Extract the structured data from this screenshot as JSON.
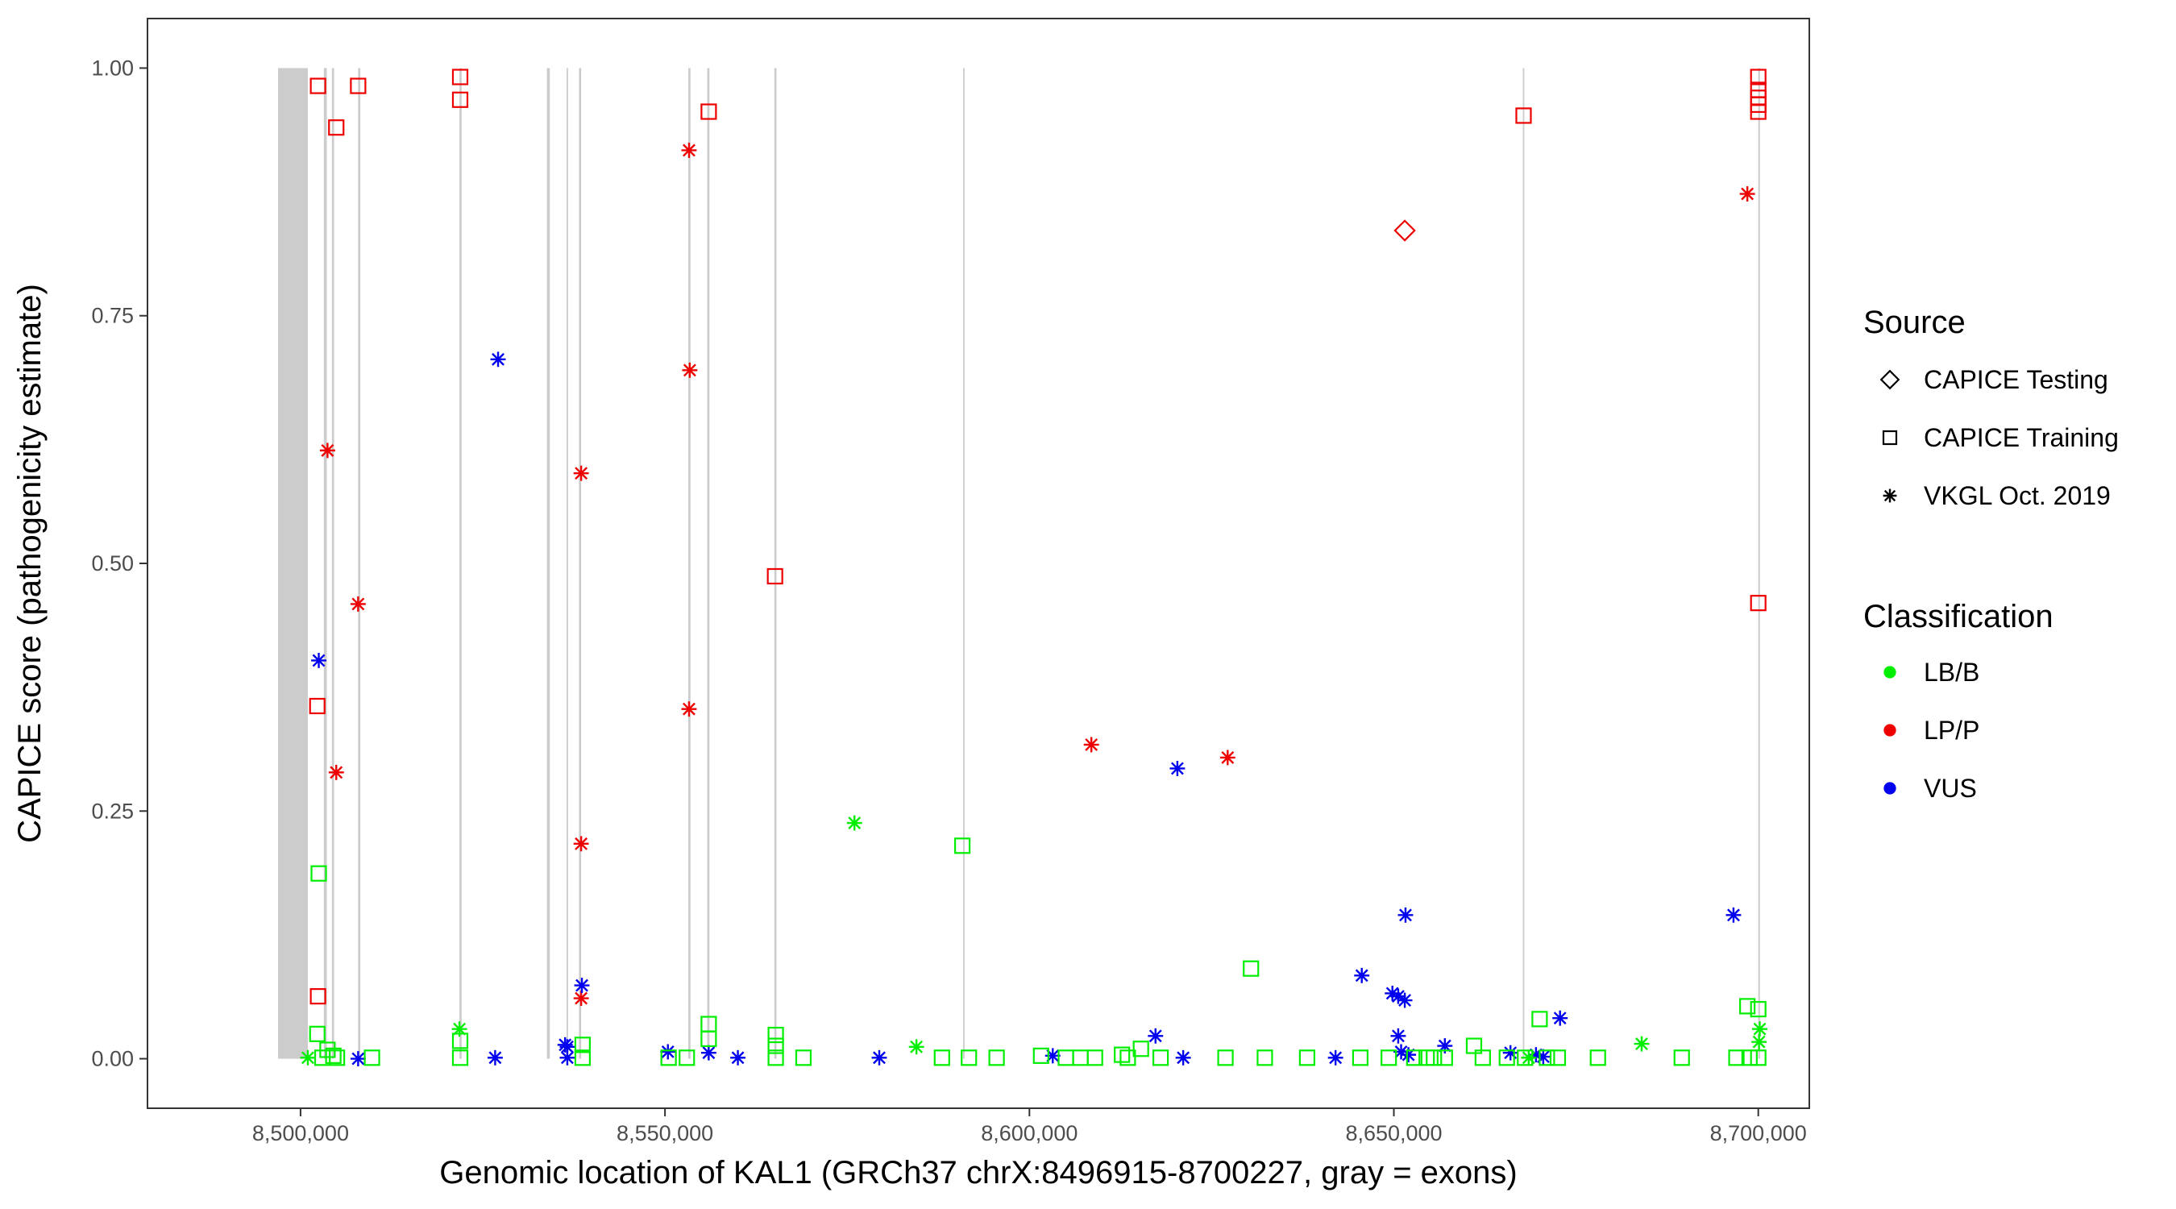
{
  "chart_data": {
    "type": "scatter",
    "xlabel": "Genomic location of KAL1 (GRCh37 chrX:8496915-8700227, gray = exons)",
    "ylabel": "CAPICE score (pathogenicity estimate)",
    "xlim": [
      8479000,
      8707000
    ],
    "ylim": [
      -0.05,
      1.05
    ],
    "x_ticks": [
      8500000,
      8550000,
      8600000,
      8650000,
      8700000
    ],
    "x_tick_labels": [
      "8,500,000",
      "8,550,000",
      "8,600,000",
      "8,650,000",
      "8,700,000"
    ],
    "y_ticks": [
      0,
      0.25,
      0.5,
      0.75,
      1.0
    ],
    "y_tick_labels": [
      "0.00",
      "0.25",
      "0.50",
      "0.75",
      "1.00"
    ],
    "grid": false,
    "legend_position": "right",
    "exons": [
      [
        8496915,
        8501000
      ],
      [
        8503200,
        8503600
      ],
      [
        8504300,
        8504600
      ],
      [
        8507900,
        8508200
      ],
      [
        8521800,
        8522100
      ],
      [
        8533800,
        8534200
      ],
      [
        8536500,
        8536700
      ],
      [
        8538200,
        8538500
      ],
      [
        8553200,
        8553500
      ],
      [
        8555800,
        8556100
      ],
      [
        8565000,
        8565300
      ],
      [
        8590900,
        8591100
      ],
      [
        8667700,
        8667900
      ],
      [
        8700000,
        8700227
      ]
    ],
    "exon_color": "#cccccc",
    "legends": {
      "source": {
        "title": "Source",
        "items": [
          {
            "label": "CAPICE Testing",
            "shape": "diamond"
          },
          {
            "label": "CAPICE Training",
            "shape": "square"
          },
          {
            "label": "VKGL Oct. 2019",
            "shape": "asterisk"
          }
        ]
      },
      "classification": {
        "title": "Classification",
        "items": [
          {
            "label": "LB/B",
            "color": "#00ee00"
          },
          {
            "label": "LP/P",
            "color": "#ee0000"
          },
          {
            "label": "VUS",
            "color": "#0000ee"
          }
        ]
      }
    },
    "series": [
      {
        "source": "CAPICE Training",
        "classification": "LP/P",
        "shape": "square",
        "color": "#ee0000",
        "points": [
          [
            8502400,
            0.982
          ],
          [
            8507900,
            0.982
          ],
          [
            8504900,
            0.94
          ],
          [
            8521900,
            0.991
          ],
          [
            8521900,
            0.968
          ],
          [
            8556000,
            0.956
          ],
          [
            8565100,
            0.487
          ],
          [
            8502300,
            0.356
          ],
          [
            8502400,
            0.063
          ],
          [
            8667800,
            0.952
          ],
          [
            8700000,
            0.991
          ],
          [
            8700000,
            0.978
          ],
          [
            8700000,
            0.97
          ],
          [
            8700000,
            0.963
          ],
          [
            8700000,
            0.956
          ],
          [
            8700000,
            0.46
          ]
        ]
      },
      {
        "source": "CAPICE Testing",
        "classification": "LP/P",
        "shape": "diamond",
        "color": "#ee0000",
        "points": [
          [
            8651500,
            0.836
          ]
        ]
      },
      {
        "source": "VKGL Oct. 2019",
        "classification": "LP/P",
        "shape": "asterisk",
        "color": "#ee0000",
        "points": [
          [
            8503700,
            0.614
          ],
          [
            8507900,
            0.459
          ],
          [
            8504900,
            0.289
          ],
          [
            8553300,
            0.917
          ],
          [
            8553400,
            0.695
          ],
          [
            8553300,
            0.353
          ],
          [
            8538500,
            0.591
          ],
          [
            8538500,
            0.217
          ],
          [
            8538500,
            0.061
          ],
          [
            8608500,
            0.317
          ],
          [
            8627200,
            0.304
          ],
          [
            8698500,
            0.873
          ]
        ]
      },
      {
        "source": "VKGL Oct. 2019",
        "classification": "VUS",
        "shape": "asterisk",
        "color": "#0000ee",
        "points": [
          [
            8502500,
            0.402
          ],
          [
            8527100,
            0.706
          ],
          [
            8538600,
            0.074
          ],
          [
            8536300,
            0.014
          ],
          [
            8536600,
            0.012
          ],
          [
            8536600,
            0.001
          ],
          [
            8526700,
            0.001
          ],
          [
            8507900,
            0.0
          ],
          [
            8550400,
            0.007
          ],
          [
            8556000,
            0.006
          ],
          [
            8560000,
            0.001
          ],
          [
            8579400,
            0.001
          ],
          [
            8603200,
            0.003
          ],
          [
            8617300,
            0.023
          ],
          [
            8620300,
            0.293
          ],
          [
            8621100,
            0.001
          ],
          [
            8645600,
            0.084
          ],
          [
            8649800,
            0.066
          ],
          [
            8650600,
            0.063
          ],
          [
            8651500,
            0.059
          ],
          [
            8650600,
            0.023
          ],
          [
            8651600,
            0.145
          ],
          [
            8651000,
            0.007
          ],
          [
            8652000,
            0.004
          ],
          [
            8657000,
            0.013
          ],
          [
            8642000,
            0.001
          ],
          [
            8666000,
            0.006
          ],
          [
            8669500,
            0.004
          ],
          [
            8672800,
            0.041
          ],
          [
            8670500,
            0.002
          ],
          [
            8696600,
            0.145
          ]
        ]
      },
      {
        "source": "VKGL Oct. 2019",
        "classification": "LB/B",
        "shape": "asterisk",
        "color": "#00ee00",
        "points": [
          [
            8501000,
            0.001
          ],
          [
            8521800,
            0.03
          ],
          [
            8576000,
            0.238
          ],
          [
            8584500,
            0.012
          ],
          [
            8684000,
            0.015
          ],
          [
            8700200,
            0.03
          ],
          [
            8700100,
            0.017
          ],
          [
            8668500,
            0.001
          ]
        ]
      },
      {
        "source": "CAPICE Training",
        "classification": "LB/B",
        "shape": "square",
        "color": "#00ee00",
        "points": [
          [
            8502500,
            0.187
          ],
          [
            8590800,
            0.215
          ],
          [
            8630400,
            0.091
          ],
          [
            8698500,
            0.053
          ],
          [
            8700000,
            0.05
          ],
          [
            8502300,
            0.025
          ],
          [
            8503000,
            0.001
          ],
          [
            8503700,
            0.009
          ],
          [
            8504500,
            0.003
          ],
          [
            8505000,
            0.001
          ],
          [
            8509800,
            0.001
          ],
          [
            8521900,
            0.018
          ],
          [
            8521900,
            0.001
          ],
          [
            8538700,
            0.014
          ],
          [
            8538700,
            0.001
          ],
          [
            8550500,
            0.001
          ],
          [
            8553000,
            0.001
          ],
          [
            8556000,
            0.035
          ],
          [
            8556000,
            0.02
          ],
          [
            8565200,
            0.024
          ],
          [
            8565200,
            0.013
          ],
          [
            8565200,
            0.001
          ],
          [
            8569000,
            0.001
          ],
          [
            8588000,
            0.001
          ],
          [
            8591700,
            0.001
          ],
          [
            8595500,
            0.001
          ],
          [
            8601600,
            0.003
          ],
          [
            8605000,
            0.001
          ],
          [
            8607000,
            0.001
          ],
          [
            8609000,
            0.001
          ],
          [
            8612700,
            0.004
          ],
          [
            8613500,
            0.001
          ],
          [
            8615300,
            0.01
          ],
          [
            8618000,
            0.001
          ],
          [
            8626900,
            0.001
          ],
          [
            8632300,
            0.001
          ],
          [
            8638100,
            0.001
          ],
          [
            8645400,
            0.001
          ],
          [
            8649300,
            0.001
          ],
          [
            8652800,
            0.001
          ],
          [
            8654500,
            0.001
          ],
          [
            8655500,
            0.001
          ],
          [
            8657000,
            0.001
          ],
          [
            8661000,
            0.013
          ],
          [
            8662200,
            0.001
          ],
          [
            8665500,
            0.001
          ],
          [
            8668000,
            0.001
          ],
          [
            8670000,
            0.04
          ],
          [
            8671000,
            0.001
          ],
          [
            8672500,
            0.001
          ],
          [
            8678000,
            0.001
          ],
          [
            8689500,
            0.001
          ],
          [
            8697000,
            0.001
          ],
          [
            8698800,
            0.001
          ],
          [
            8700000,
            0.001
          ]
        ]
      }
    ]
  }
}
